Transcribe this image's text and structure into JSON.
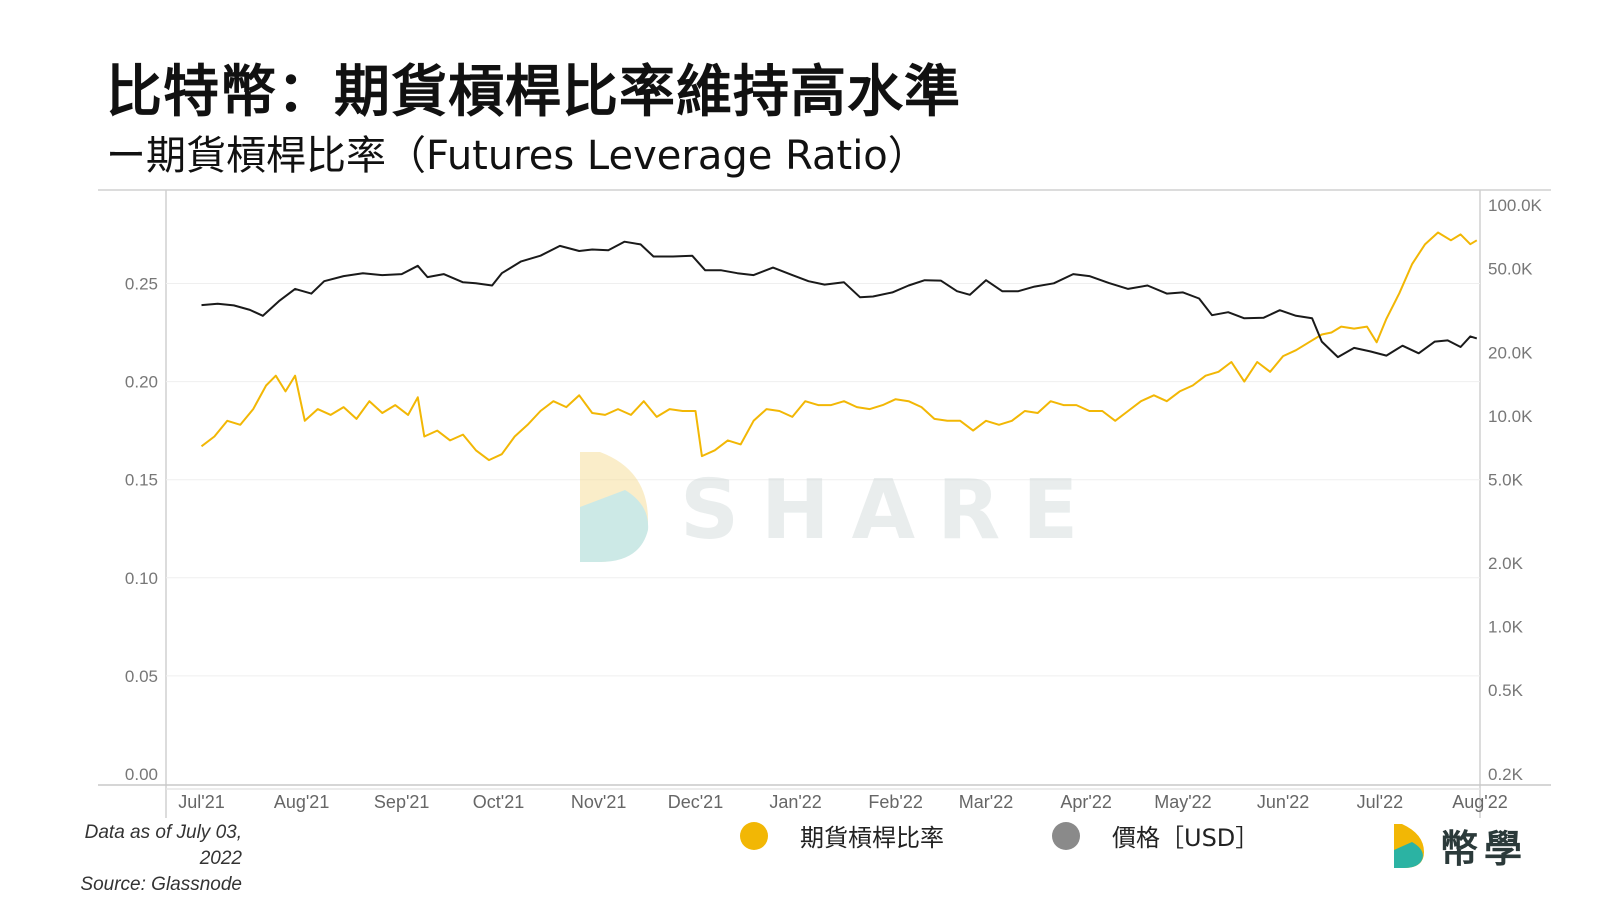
{
  "header": {
    "title": "比特幣：期貨槓桿比率維持高水準",
    "subtitle": "ー期貨槓桿比率（Futures Leverage Ratio）"
  },
  "watermark": {
    "text": "SHARE"
  },
  "footer": {
    "date_note": "Data as of July 03, 2022",
    "source_note": "Source: Glassnode"
  },
  "legend": [
    {
      "label": "期貨槓桿比率",
      "color": "#f2b705"
    },
    {
      "label": "價格［USD］",
      "color": "#8a8a8a"
    }
  ],
  "brand": {
    "name": "幣學"
  },
  "chart_data": {
    "type": "line",
    "x_axis": {
      "ticks": [
        "Jul'21",
        "Aug'21",
        "Sep'21",
        "Oct'21",
        "Nov'21",
        "Dec'21",
        "Jan'22",
        "Feb'22",
        "Mar'22",
        "Apr'22",
        "May'22",
        "Jun'22",
        "Jul'22",
        "Aug'22"
      ],
      "range": [
        "2021-06-20",
        "2022-08-01"
      ]
    },
    "y_left": {
      "ticks": [
        "0.00",
        "0.05",
        "0.10",
        "0.15",
        "0.20",
        "0.25"
      ],
      "range": [
        0,
        0.29
      ]
    },
    "y_right": {
      "scale": "log",
      "ticks": [
        "100.0K",
        "50.0K",
        "20.0K",
        "10.0K",
        "5.0K",
        "2.0K",
        "1.0K",
        "0.5K",
        "0.2K"
      ],
      "range": [
        200,
        100000
      ]
    },
    "grid": true,
    "legend_position": "bottom",
    "series": [
      {
        "name": "期貨槓桿比率",
        "axis": "left",
        "color": "#f2b705",
        "points": [
          [
            "2021-07-01",
            0.167
          ],
          [
            "2021-07-05",
            0.172
          ],
          [
            "2021-07-09",
            0.18
          ],
          [
            "2021-07-13",
            0.178
          ],
          [
            "2021-07-17",
            0.186
          ],
          [
            "2021-07-21",
            0.198
          ],
          [
            "2021-07-24",
            0.203
          ],
          [
            "2021-07-27",
            0.195
          ],
          [
            "2021-07-30",
            0.203
          ],
          [
            "2021-08-02",
            0.18
          ],
          [
            "2021-08-06",
            0.186
          ],
          [
            "2021-08-10",
            0.183
          ],
          [
            "2021-08-14",
            0.187
          ],
          [
            "2021-08-18",
            0.181
          ],
          [
            "2021-08-22",
            0.19
          ],
          [
            "2021-08-26",
            0.184
          ],
          [
            "2021-08-30",
            0.188
          ],
          [
            "2021-09-03",
            0.183
          ],
          [
            "2021-09-06",
            0.192
          ],
          [
            "2021-09-08",
            0.172
          ],
          [
            "2021-09-12",
            0.175
          ],
          [
            "2021-09-16",
            0.17
          ],
          [
            "2021-09-20",
            0.173
          ],
          [
            "2021-09-24",
            0.165
          ],
          [
            "2021-09-28",
            0.16
          ],
          [
            "2021-10-02",
            0.163
          ],
          [
            "2021-10-06",
            0.172
          ],
          [
            "2021-10-10",
            0.178
          ],
          [
            "2021-10-14",
            0.185
          ],
          [
            "2021-10-18",
            0.19
          ],
          [
            "2021-10-22",
            0.187
          ],
          [
            "2021-10-26",
            0.193
          ],
          [
            "2021-10-30",
            0.184
          ],
          [
            "2021-11-03",
            0.183
          ],
          [
            "2021-11-07",
            0.186
          ],
          [
            "2021-11-11",
            0.183
          ],
          [
            "2021-11-15",
            0.19
          ],
          [
            "2021-11-19",
            0.182
          ],
          [
            "2021-11-23",
            0.186
          ],
          [
            "2021-11-27",
            0.185
          ],
          [
            "2021-12-01",
            0.185
          ],
          [
            "2021-12-03",
            0.162
          ],
          [
            "2021-12-07",
            0.165
          ],
          [
            "2021-12-11",
            0.17
          ],
          [
            "2021-12-15",
            0.168
          ],
          [
            "2021-12-19",
            0.18
          ],
          [
            "2021-12-23",
            0.186
          ],
          [
            "2021-12-27",
            0.185
          ],
          [
            "2021-12-31",
            0.182
          ],
          [
            "2022-01-04",
            0.19
          ],
          [
            "2022-01-08",
            0.188
          ],
          [
            "2022-01-12",
            0.188
          ],
          [
            "2022-01-16",
            0.19
          ],
          [
            "2022-01-20",
            0.187
          ],
          [
            "2022-01-24",
            0.186
          ],
          [
            "2022-01-28",
            0.188
          ],
          [
            "2022-02-01",
            0.191
          ],
          [
            "2022-02-05",
            0.19
          ],
          [
            "2022-02-09",
            0.187
          ],
          [
            "2022-02-13",
            0.181
          ],
          [
            "2022-02-17",
            0.18
          ],
          [
            "2022-02-21",
            0.18
          ],
          [
            "2022-02-25",
            0.175
          ],
          [
            "2022-03-01",
            0.18
          ],
          [
            "2022-03-05",
            0.178
          ],
          [
            "2022-03-09",
            0.18
          ],
          [
            "2022-03-13",
            0.185
          ],
          [
            "2022-03-17",
            0.184
          ],
          [
            "2022-03-21",
            0.19
          ],
          [
            "2022-03-25",
            0.188
          ],
          [
            "2022-03-29",
            0.188
          ],
          [
            "2022-04-02",
            0.185
          ],
          [
            "2022-04-06",
            0.185
          ],
          [
            "2022-04-10",
            0.18
          ],
          [
            "2022-04-14",
            0.185
          ],
          [
            "2022-04-18",
            0.19
          ],
          [
            "2022-04-22",
            0.193
          ],
          [
            "2022-04-26",
            0.19
          ],
          [
            "2022-04-30",
            0.195
          ],
          [
            "2022-05-04",
            0.198
          ],
          [
            "2022-05-08",
            0.203
          ],
          [
            "2022-05-12",
            0.205
          ],
          [
            "2022-05-16",
            0.21
          ],
          [
            "2022-05-20",
            0.2
          ],
          [
            "2022-05-24",
            0.21
          ],
          [
            "2022-05-28",
            0.205
          ],
          [
            "2022-06-01",
            0.213
          ],
          [
            "2022-06-05",
            0.216
          ],
          [
            "2022-06-09",
            0.22
          ],
          [
            "2022-06-13",
            0.224
          ],
          [
            "2022-06-16",
            0.225
          ],
          [
            "2022-06-19",
            0.228
          ],
          [
            "2022-06-23",
            0.227
          ],
          [
            "2022-06-27",
            0.228
          ],
          [
            "2022-06-30",
            0.22
          ],
          [
            "2022-07-03",
            0.232
          ],
          [
            "2022-07-07",
            0.245
          ],
          [
            "2022-07-11",
            0.26
          ],
          [
            "2022-07-15",
            0.27
          ],
          [
            "2022-07-19",
            0.276
          ],
          [
            "2022-07-23",
            0.272
          ],
          [
            "2022-07-26",
            0.275
          ],
          [
            "2022-07-29",
            0.27
          ],
          [
            "2022-07-31",
            0.272
          ]
        ]
      },
      {
        "name": "價格［USD］",
        "axis": "right",
        "color": "#1a1a1a",
        "points": [
          [
            "2021-07-01",
            33500
          ],
          [
            "2021-07-06",
            34000
          ],
          [
            "2021-07-11",
            33400
          ],
          [
            "2021-07-16",
            31800
          ],
          [
            "2021-07-20",
            29800
          ],
          [
            "2021-07-25",
            35000
          ],
          [
            "2021-07-30",
            40000
          ],
          [
            "2021-08-04",
            38000
          ],
          [
            "2021-08-08",
            43500
          ],
          [
            "2021-08-14",
            46000
          ],
          [
            "2021-08-20",
            47500
          ],
          [
            "2021-08-26",
            46500
          ],
          [
            "2021-09-01",
            47000
          ],
          [
            "2021-09-06",
            51500
          ],
          [
            "2021-09-09",
            45500
          ],
          [
            "2021-09-14",
            47000
          ],
          [
            "2021-09-20",
            43000
          ],
          [
            "2021-09-24",
            42500
          ],
          [
            "2021-09-29",
            41500
          ],
          [
            "2021-10-02",
            47500
          ],
          [
            "2021-10-08",
            54000
          ],
          [
            "2021-10-14",
            57500
          ],
          [
            "2021-10-20",
            64000
          ],
          [
            "2021-10-26",
            60500
          ],
          [
            "2021-10-30",
            61500
          ],
          [
            "2021-11-04",
            61000
          ],
          [
            "2021-11-09",
            67000
          ],
          [
            "2021-11-14",
            65000
          ],
          [
            "2021-11-18",
            57000
          ],
          [
            "2021-11-24",
            57000
          ],
          [
            "2021-11-30",
            57500
          ],
          [
            "2021-12-04",
            49000
          ],
          [
            "2021-12-09",
            49000
          ],
          [
            "2021-12-14",
            47500
          ],
          [
            "2021-12-19",
            46500
          ],
          [
            "2021-12-25",
            50500
          ],
          [
            "2021-12-31",
            46500
          ],
          [
            "2022-01-05",
            43500
          ],
          [
            "2022-01-10",
            41900
          ],
          [
            "2022-01-16",
            43000
          ],
          [
            "2022-01-21",
            36500
          ],
          [
            "2022-01-25",
            36800
          ],
          [
            "2022-01-31",
            38500
          ],
          [
            "2022-02-05",
            41500
          ],
          [
            "2022-02-10",
            44000
          ],
          [
            "2022-02-15",
            43800
          ],
          [
            "2022-02-20",
            39000
          ],
          [
            "2022-02-24",
            37500
          ],
          [
            "2022-03-01",
            44000
          ],
          [
            "2022-03-06",
            39000
          ],
          [
            "2022-03-11",
            39000
          ],
          [
            "2022-03-16",
            41000
          ],
          [
            "2022-03-22",
            42500
          ],
          [
            "2022-03-28",
            47000
          ],
          [
            "2022-04-02",
            46000
          ],
          [
            "2022-04-08",
            42700
          ],
          [
            "2022-04-14",
            40000
          ],
          [
            "2022-04-20",
            41500
          ],
          [
            "2022-04-26",
            38000
          ],
          [
            "2022-05-01",
            38500
          ],
          [
            "2022-05-06",
            36000
          ],
          [
            "2022-05-10",
            30000
          ],
          [
            "2022-05-15",
            31000
          ],
          [
            "2022-05-20",
            29000
          ],
          [
            "2022-05-26",
            29200
          ],
          [
            "2022-05-31",
            31700
          ],
          [
            "2022-06-05",
            29800
          ],
          [
            "2022-06-10",
            29000
          ],
          [
            "2022-06-13",
            22500
          ],
          [
            "2022-06-18",
            19000
          ],
          [
            "2022-06-23",
            21000
          ],
          [
            "2022-06-28",
            20200
          ],
          [
            "2022-07-03",
            19300
          ],
          [
            "2022-07-08",
            21500
          ],
          [
            "2022-07-13",
            19800
          ],
          [
            "2022-07-18",
            22500
          ],
          [
            "2022-07-22",
            22800
          ],
          [
            "2022-07-26",
            21200
          ],
          [
            "2022-07-29",
            23800
          ],
          [
            "2022-07-31",
            23300
          ]
        ]
      }
    ]
  }
}
